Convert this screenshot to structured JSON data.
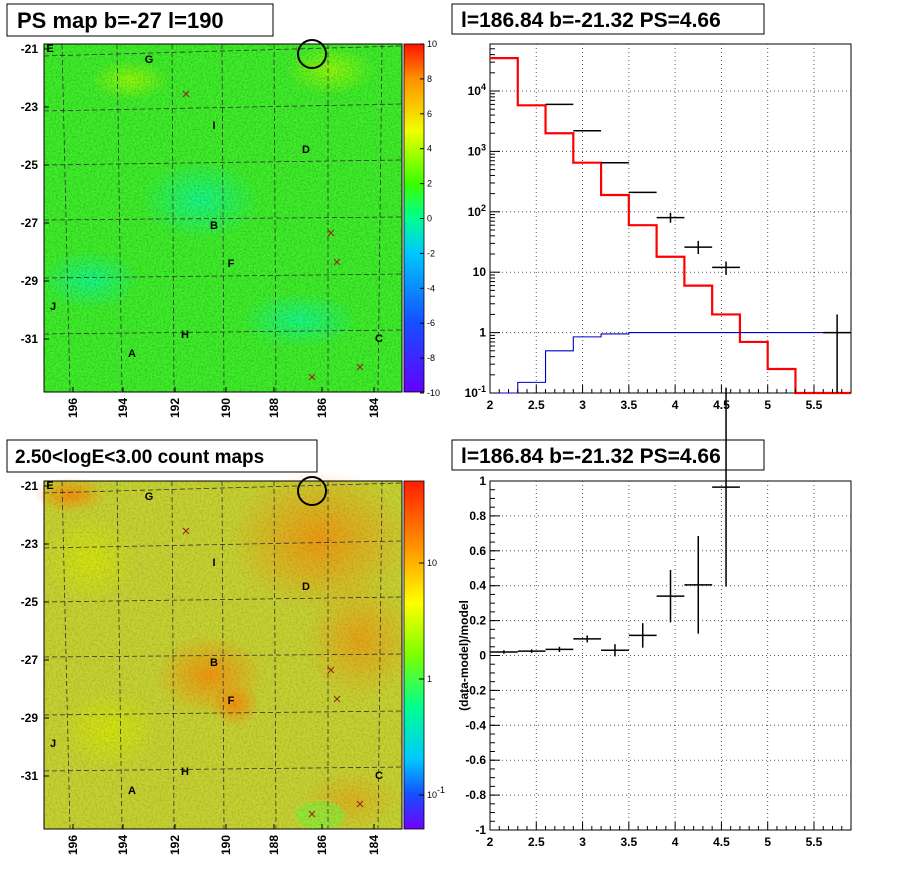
{
  "panels": {
    "ps_map": {
      "title": "PS map b=-27 l=190",
      "colorbar_ticks": [
        "10",
        "8",
        "6",
        "4",
        "2",
        "0",
        "-2",
        "-4",
        "-6",
        "-8",
        "-10"
      ]
    },
    "count_map": {
      "title": "2.50<logE<3.00 count maps",
      "colorbar_ticks": [
        "10",
        "1",
        "10^{-1}"
      ]
    },
    "spectrum": {
      "title": "l=186.84 b=-21.32 PS=4.66"
    },
    "residual": {
      "title": "l=186.84 b=-21.32 PS=4.66"
    }
  },
  "maps": {
    "y_ticks": [
      "-21",
      "-23",
      "-25",
      "-27",
      "-29",
      "-31"
    ],
    "x_ticks": [
      "196",
      "194",
      "192",
      "190",
      "188",
      "186",
      "184"
    ],
    "source_labels": [
      "E",
      "G",
      "I",
      "D",
      "B",
      "F",
      "J",
      "H",
      "A",
      "C"
    ],
    "crosses": 5
  },
  "chart_data": [
    {
      "type": "line",
      "name": "spectrum",
      "xlim": [
        2,
        5.9
      ],
      "ylim": [
        0.1,
        60000
      ],
      "log_y": true,
      "grid": true,
      "x_ticks": [
        "2",
        "2.5",
        "3",
        "3.5",
        "4",
        "4.5",
        "5",
        "5.5"
      ],
      "y_ticks": [
        "10^{-1}",
        "1",
        "10",
        "10^{2}",
        "10^{3}",
        "10^{4}"
      ],
      "bin_edges": [
        2.0,
        2.3,
        2.6,
        2.9,
        3.2,
        3.5,
        3.8,
        4.1,
        4.4,
        4.7,
        5.0,
        5.3,
        5.6,
        5.9
      ],
      "series": [
        {
          "color": "#ff0000",
          "values": [
            35000,
            5800,
            2000,
            650,
            190,
            60,
            18,
            6,
            2,
            0.7,
            0.25,
            0.1,
            0.1
          ]
        },
        {
          "color": "#0000cc",
          "values": [
            0.1,
            0.15,
            0.5,
            0.85,
            0.95,
            1,
            1,
            1,
            1,
            1,
            1,
            1,
            1
          ]
        }
      ],
      "data_points": [
        {
          "x": 2.75,
          "y": 6000
        },
        {
          "x": 3.05,
          "y": 2200
        },
        {
          "x": 3.35,
          "y": 650
        },
        {
          "x": 3.65,
          "y": 210
        },
        {
          "x": 3.95,
          "y": 80,
          "err": [
            66,
            96
          ]
        },
        {
          "x": 4.25,
          "y": 26,
          "err": [
            20,
            33
          ]
        },
        {
          "x": 4.55,
          "y": 12,
          "err": [
            9,
            15
          ]
        },
        {
          "x": 5.75,
          "y": 1,
          "err": [
            0.1,
            2
          ]
        }
      ]
    },
    {
      "type": "scatter",
      "name": "residual",
      "xlim": [
        2,
        5.9
      ],
      "ylim": [
        -1,
        1
      ],
      "grid": true,
      "ylabel": "(data-model)/model",
      "x_ticks": [
        "2",
        "2.5",
        "3",
        "3.5",
        "4",
        "4.5",
        "5",
        "5.5"
      ],
      "y_ticks": [
        "-1",
        "-0.8",
        "-0.6",
        "-0.4",
        "-0.2",
        "0",
        "0.2",
        "0.4",
        "0.6",
        "0.8",
        "1"
      ],
      "points": [
        {
          "x": 2.15,
          "y": 0.02,
          "xerr": 0.15,
          "yerr": 0.01
        },
        {
          "x": 2.45,
          "y": 0.025,
          "xerr": 0.15,
          "yerr": 0.01
        },
        {
          "x": 2.75,
          "y": 0.035,
          "xerr": 0.15,
          "yerr": 0.015
        },
        {
          "x": 3.05,
          "y": 0.095,
          "xerr": 0.15,
          "yerr": 0.02
        },
        {
          "x": 3.35,
          "y": 0.03,
          "xerr": 0.15,
          "yerr": 0.035
        },
        {
          "x": 3.65,
          "y": 0.115,
          "xerr": 0.15,
          "yerr": 0.07
        },
        {
          "x": 3.95,
          "y": 0.34,
          "xerr": 0.15,
          "yerr": 0.15
        },
        {
          "x": 4.25,
          "y": 0.405,
          "xerr": 0.15,
          "yerr": 0.28
        },
        {
          "x": 4.55,
          "y": 0.965,
          "xerr": 0.15,
          "yerr": 0.57
        }
      ]
    }
  ]
}
